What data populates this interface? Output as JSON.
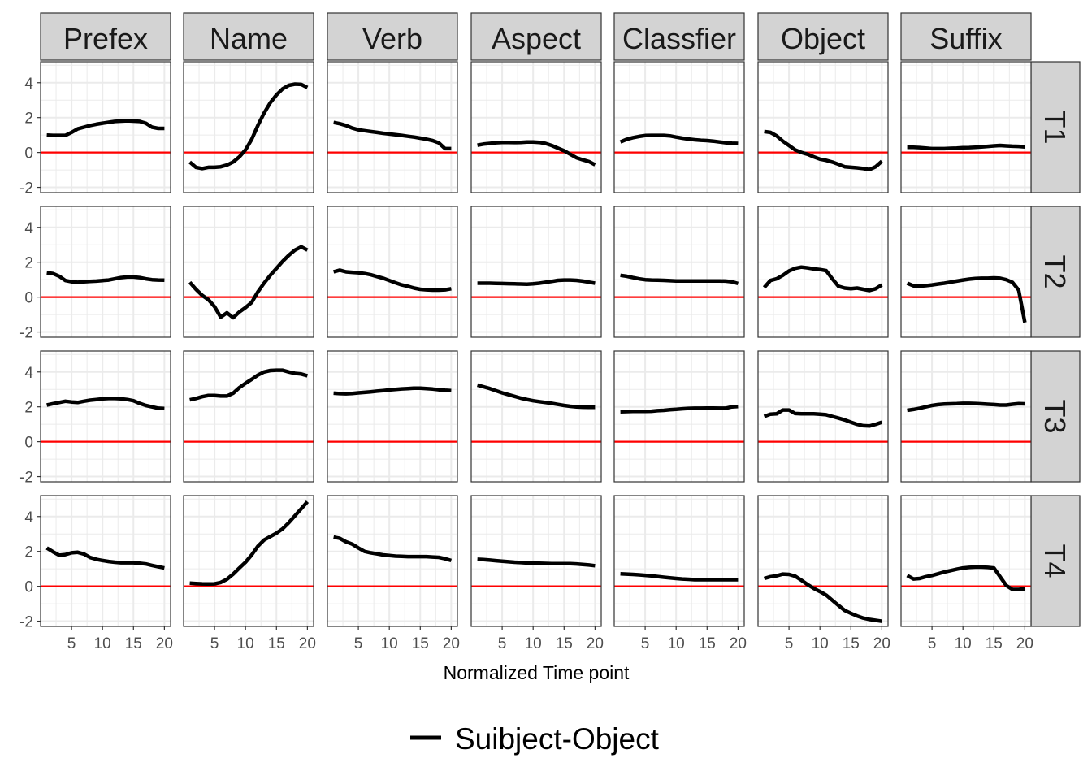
{
  "chart_data": {
    "type": "line",
    "layout": "facet-grid",
    "xlabel": "Normalized Time point",
    "ylabel": "",
    "x_ticks": [
      5,
      10,
      15,
      20
    ],
    "y_ticks": [
      -2,
      0,
      2,
      4
    ],
    "xlim": [
      0,
      21
    ],
    "ylim": [
      -2.3,
      5.2
    ],
    "reference_line": {
      "y": 0,
      "color": "#ff0000"
    },
    "columns": [
      "Prefex",
      "Name",
      "Verb",
      "Aspect",
      "Classfier",
      "Object",
      "Suffix"
    ],
    "rows": [
      "T1",
      "T2",
      "T3",
      "T4"
    ],
    "x": [
      1,
      2,
      3,
      4,
      5,
      6,
      7,
      8,
      9,
      10,
      11,
      12,
      13,
      14,
      15,
      16,
      17,
      18,
      19,
      20
    ],
    "legend": {
      "position": "bottom",
      "entries": [
        {
          "name": "Suibject-Object",
          "color": "#000000"
        }
      ]
    },
    "series_name": "Suibject-Object",
    "panels": {
      "T1": {
        "Prefex": [
          1.0,
          0.98,
          0.98,
          0.98,
          1.15,
          1.35,
          1.45,
          1.55,
          1.62,
          1.68,
          1.73,
          1.78,
          1.8,
          1.82,
          1.8,
          1.78,
          1.68,
          1.45,
          1.38,
          1.38
        ],
        "Name": [
          -0.55,
          -0.85,
          -0.92,
          -0.85,
          -0.85,
          -0.82,
          -0.72,
          -0.55,
          -0.25,
          0.15,
          0.75,
          1.55,
          2.25,
          2.85,
          3.3,
          3.65,
          3.85,
          3.92,
          3.9,
          3.72
        ],
        "Verb": [
          1.72,
          1.65,
          1.55,
          1.4,
          1.3,
          1.25,
          1.2,
          1.15,
          1.1,
          1.06,
          1.02,
          0.98,
          0.93,
          0.88,
          0.82,
          0.76,
          0.68,
          0.55,
          0.22,
          0.22
        ],
        "Aspect": [
          0.42,
          0.48,
          0.52,
          0.56,
          0.58,
          0.58,
          0.57,
          0.58,
          0.6,
          0.6,
          0.58,
          0.52,
          0.4,
          0.25,
          0.1,
          -0.1,
          -0.3,
          -0.42,
          -0.52,
          -0.7
        ],
        "Classfier": [
          0.6,
          0.75,
          0.85,
          0.92,
          0.97,
          0.98,
          0.98,
          0.98,
          0.95,
          0.88,
          0.82,
          0.77,
          0.73,
          0.7,
          0.68,
          0.65,
          0.6,
          0.56,
          0.53,
          0.52
        ],
        "Object": [
          1.2,
          1.15,
          0.95,
          0.65,
          0.4,
          0.15,
          0.0,
          -0.1,
          -0.25,
          -0.38,
          -0.45,
          -0.55,
          -0.68,
          -0.82,
          -0.85,
          -0.88,
          -0.92,
          -0.98,
          -0.82,
          -0.5
        ],
        "Suffix": [
          0.3,
          0.3,
          0.28,
          0.25,
          0.22,
          0.22,
          0.22,
          0.24,
          0.25,
          0.27,
          0.28,
          0.3,
          0.32,
          0.35,
          0.38,
          0.4,
          0.38,
          0.36,
          0.35,
          0.32
        ]
      },
      "T2": {
        "Prefex": [
          1.4,
          1.35,
          1.2,
          0.95,
          0.88,
          0.85,
          0.88,
          0.9,
          0.92,
          0.95,
          0.98,
          1.05,
          1.12,
          1.15,
          1.15,
          1.12,
          1.05,
          1.0,
          0.98,
          0.97
        ],
        "Name": [
          0.85,
          0.45,
          0.1,
          -0.15,
          -0.55,
          -1.15,
          -0.9,
          -1.18,
          -0.85,
          -0.6,
          -0.3,
          0.3,
          0.8,
          1.25,
          1.65,
          2.05,
          2.4,
          2.7,
          2.88,
          2.7
        ],
        "Verb": [
          1.45,
          1.55,
          1.45,
          1.42,
          1.4,
          1.35,
          1.28,
          1.18,
          1.08,
          0.95,
          0.82,
          0.7,
          0.62,
          0.52,
          0.45,
          0.42,
          0.4,
          0.4,
          0.42,
          0.48
        ],
        "Aspect": [
          0.8,
          0.8,
          0.8,
          0.79,
          0.78,
          0.77,
          0.76,
          0.75,
          0.74,
          0.76,
          0.8,
          0.85,
          0.9,
          0.96,
          0.98,
          0.98,
          0.96,
          0.92,
          0.86,
          0.8
        ],
        "Classfier": [
          1.25,
          1.2,
          1.12,
          1.05,
          1.0,
          0.98,
          0.97,
          0.96,
          0.94,
          0.93,
          0.93,
          0.93,
          0.93,
          0.93,
          0.93,
          0.93,
          0.93,
          0.92,
          0.88,
          0.78
        ],
        "Object": [
          0.55,
          0.95,
          1.05,
          1.25,
          1.5,
          1.65,
          1.72,
          1.68,
          1.62,
          1.58,
          1.52,
          1.05,
          0.62,
          0.52,
          0.48,
          0.52,
          0.45,
          0.38,
          0.48,
          0.7
        ],
        "Suffix": [
          0.8,
          0.65,
          0.63,
          0.66,
          0.7,
          0.75,
          0.8,
          0.86,
          0.92,
          0.98,
          1.03,
          1.07,
          1.08,
          1.08,
          1.1,
          1.08,
          1.0,
          0.85,
          0.4,
          -1.45
        ]
      },
      "T3": {
        "Prefex": [
          2.1,
          2.18,
          2.25,
          2.32,
          2.28,
          2.25,
          2.32,
          2.38,
          2.42,
          2.46,
          2.48,
          2.48,
          2.46,
          2.42,
          2.35,
          2.2,
          2.08,
          2.0,
          1.92,
          1.9
        ],
        "Name": [
          2.4,
          2.48,
          2.58,
          2.65,
          2.65,
          2.62,
          2.62,
          2.78,
          3.1,
          3.35,
          3.58,
          3.82,
          4.0,
          4.08,
          4.1,
          4.1,
          4.0,
          3.92,
          3.88,
          3.78
        ],
        "Verb": [
          2.78,
          2.76,
          2.75,
          2.77,
          2.8,
          2.83,
          2.86,
          2.9,
          2.93,
          2.97,
          3.0,
          3.03,
          3.05,
          3.07,
          3.07,
          3.05,
          3.02,
          2.98,
          2.95,
          2.93
        ],
        "Aspect": [
          3.25,
          3.15,
          3.05,
          2.92,
          2.8,
          2.7,
          2.6,
          2.5,
          2.42,
          2.35,
          2.3,
          2.25,
          2.2,
          2.14,
          2.08,
          2.03,
          2.0,
          1.98,
          1.97,
          1.97
        ],
        "Classfier": [
          1.72,
          1.73,
          1.74,
          1.74,
          1.74,
          1.75,
          1.78,
          1.8,
          1.83,
          1.86,
          1.89,
          1.91,
          1.92,
          1.92,
          1.93,
          1.93,
          1.92,
          1.92,
          2.0,
          2.02
        ],
        "Object": [
          1.45,
          1.58,
          1.6,
          1.82,
          1.82,
          1.62,
          1.6,
          1.6,
          1.6,
          1.58,
          1.55,
          1.45,
          1.35,
          1.25,
          1.12,
          1.0,
          0.92,
          0.9,
          1.0,
          1.12
        ],
        "Suffix": [
          1.8,
          1.85,
          1.92,
          2.0,
          2.08,
          2.13,
          2.16,
          2.17,
          2.18,
          2.2,
          2.2,
          2.19,
          2.17,
          2.15,
          2.13,
          2.1,
          2.1,
          2.15,
          2.18,
          2.17
        ]
      },
      "T4": {
        "Prefex": [
          2.2,
          1.98,
          1.78,
          1.82,
          1.92,
          1.95,
          1.85,
          1.65,
          1.55,
          1.48,
          1.42,
          1.38,
          1.35,
          1.35,
          1.35,
          1.32,
          1.28,
          1.2,
          1.12,
          1.05
        ],
        "Name": [
          0.18,
          0.16,
          0.14,
          0.13,
          0.14,
          0.22,
          0.4,
          0.7,
          1.05,
          1.38,
          1.8,
          2.3,
          2.65,
          2.85,
          3.05,
          3.3,
          3.65,
          4.05,
          4.45,
          4.85
        ],
        "Verb": [
          2.82,
          2.75,
          2.55,
          2.42,
          2.2,
          2.0,
          1.92,
          1.86,
          1.8,
          1.76,
          1.73,
          1.72,
          1.7,
          1.7,
          1.7,
          1.7,
          1.68,
          1.66,
          1.58,
          1.48
        ],
        "Aspect": [
          1.55,
          1.53,
          1.5,
          1.47,
          1.44,
          1.41,
          1.38,
          1.36,
          1.34,
          1.33,
          1.32,
          1.31,
          1.3,
          1.3,
          1.3,
          1.3,
          1.28,
          1.25,
          1.22,
          1.18
        ],
        "Classfier": [
          0.72,
          0.7,
          0.68,
          0.66,
          0.63,
          0.6,
          0.56,
          0.52,
          0.48,
          0.45,
          0.42,
          0.4,
          0.38,
          0.38,
          0.38,
          0.38,
          0.38,
          0.38,
          0.38,
          0.38
        ],
        "Object": [
          0.45,
          0.55,
          0.6,
          0.7,
          0.68,
          0.58,
          0.35,
          0.1,
          -0.12,
          -0.3,
          -0.5,
          -0.8,
          -1.1,
          -1.38,
          -1.55,
          -1.7,
          -1.82,
          -1.9,
          -1.95,
          -2.0
        ],
        "Suffix": [
          0.62,
          0.42,
          0.45,
          0.55,
          0.62,
          0.72,
          0.82,
          0.9,
          0.98,
          1.05,
          1.08,
          1.1,
          1.1,
          1.08,
          1.05,
          0.55,
          0.05,
          -0.18,
          -0.18,
          -0.15
        ]
      }
    }
  }
}
